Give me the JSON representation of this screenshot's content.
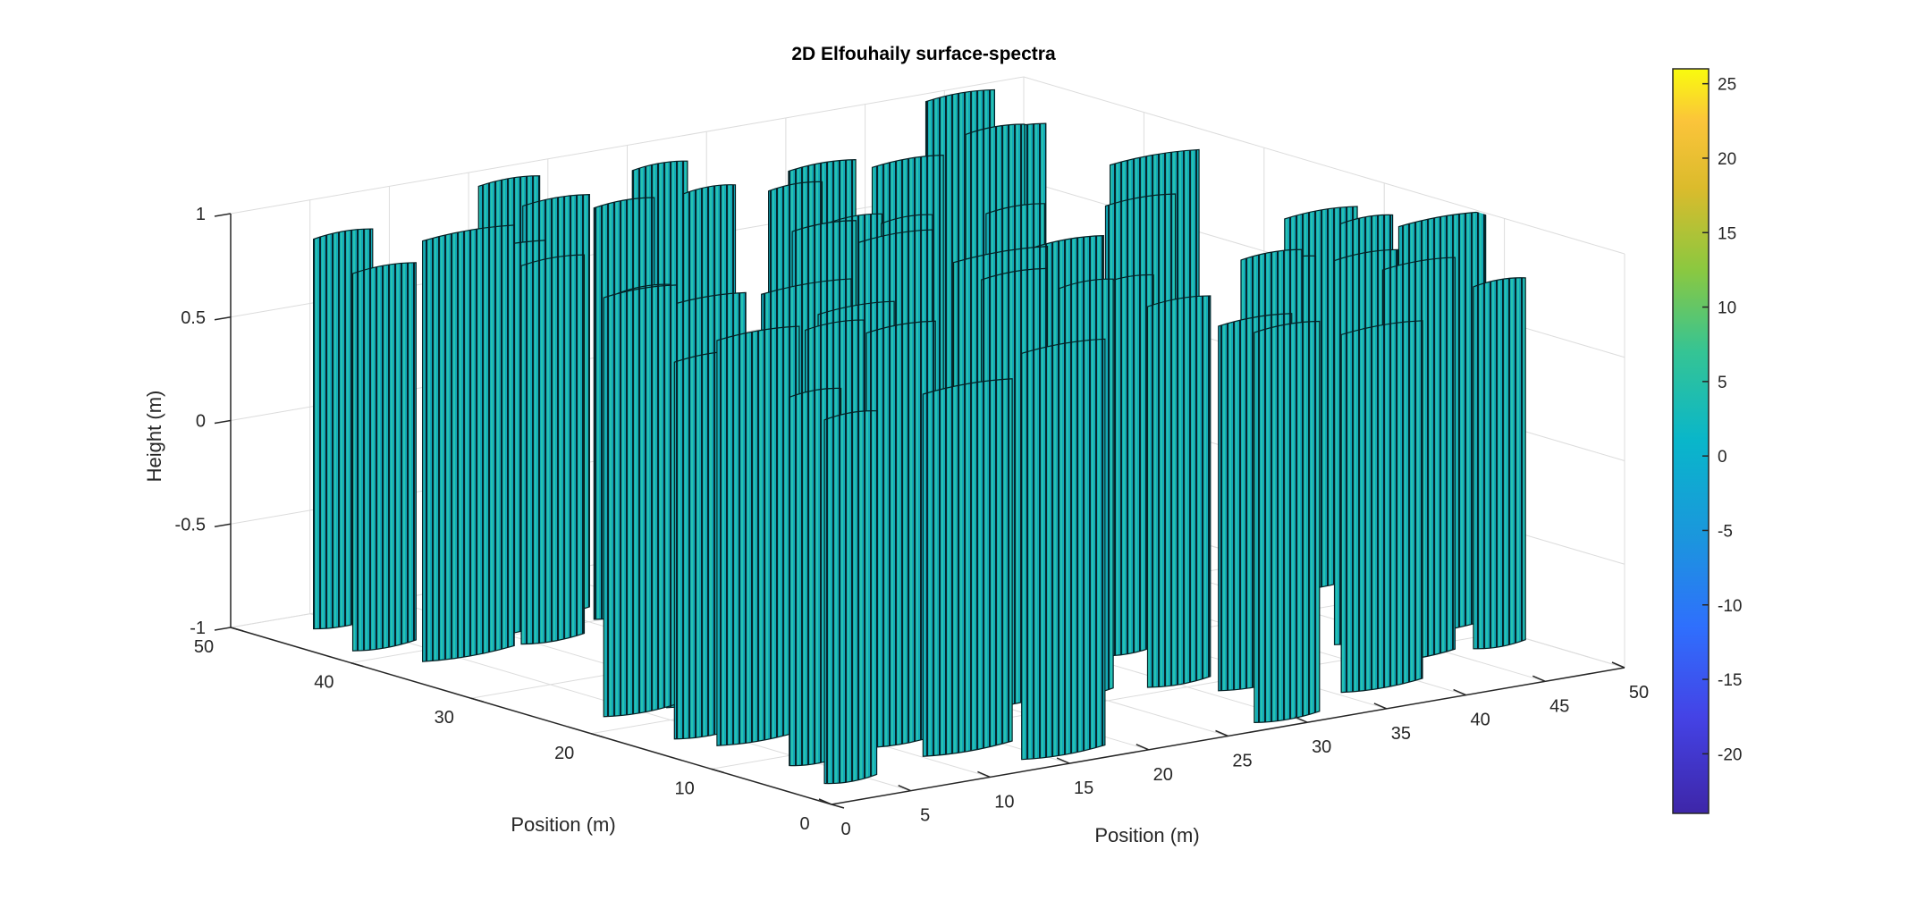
{
  "chart_data": {
    "type": "surface",
    "title": "2D Elfouhaily surface-spectra",
    "xlabel": "Position (m)",
    "ylabel": "Position (m)",
    "zlabel": "Height (m)",
    "xlim": [
      0,
      50
    ],
    "ylim": [
      0,
      50
    ],
    "zlim": [
      -1,
      1
    ],
    "x_ticks": [
      "0",
      "5",
      "10",
      "15",
      "20",
      "25",
      "30",
      "35",
      "40",
      "45",
      "50"
    ],
    "y_ticks": [
      "0",
      "10",
      "20",
      "30",
      "40",
      "50"
    ],
    "z_ticks": [
      "-1",
      "-0.5",
      "0",
      "0.5",
      "1"
    ],
    "grid": true,
    "colormap": "parula",
    "colorbar": {
      "position": "right",
      "clim": [
        -24,
        26
      ],
      "ticks": [
        "-20",
        "-15",
        "-10",
        "-5",
        "0",
        "5",
        "10",
        "15",
        "20",
        "25"
      ]
    },
    "surface_color_range": [
      -5,
      5
    ],
    "surface_colors": [
      "#0fb0c8",
      "#19b8b0",
      "#2cc09a",
      "#1aa4c8"
    ],
    "edge_color": "#000000"
  }
}
